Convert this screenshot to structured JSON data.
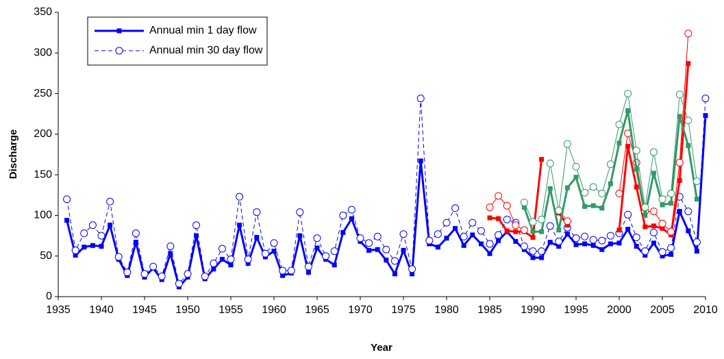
{
  "chart_data": {
    "type": "line",
    "xlabel": "Year",
    "ylabel": "Discharge",
    "xlim": [
      1935,
      2010
    ],
    "xticks": [
      1935,
      1940,
      1945,
      1950,
      1955,
      1960,
      1965,
      1970,
      1975,
      1980,
      1985,
      1990,
      1995,
      2000,
      2005,
      2010
    ],
    "ylim": [
      0,
      350
    ],
    "yticks": [
      0,
      50,
      100,
      150,
      200,
      250,
      300,
      350
    ],
    "grid": false,
    "legend": "upper left",
    "series": [
      {
        "name": "Annual min 1 day flow",
        "color": "#0000ff",
        "dash": false,
        "width": 3,
        "marker": "square",
        "x": [
          1936,
          1937,
          1938,
          1939,
          1940,
          1941,
          1942,
          1943,
          1944,
          1945,
          1946,
          1947,
          1948,
          1949,
          1950,
          1951,
          1952,
          1953,
          1954,
          1955,
          1956,
          1957,
          1958,
          1959,
          1960,
          1961,
          1962,
          1963,
          1964,
          1965,
          1966,
          1967,
          1968,
          1969,
          1970,
          1971,
          1972,
          1973,
          1974,
          1975,
          1976,
          1977,
          1978,
          1979,
          1980,
          1981,
          1982,
          1983,
          1984,
          1985,
          1986,
          1987,
          1988,
          1989,
          1990,
          1991,
          1992,
          1993,
          1994,
          1995,
          1996,
          1997,
          1998,
          1999,
          2000,
          2001,
          2002,
          2003,
          2004,
          2005,
          2006,
          2007,
          2008,
          2009,
          2010
        ],
        "values": [
          94,
          51,
          61,
          63,
          62,
          88,
          46,
          26,
          67,
          24,
          35,
          21,
          53,
          12,
          24,
          75,
          22,
          34,
          46,
          39,
          88,
          41,
          73,
          49,
          56,
          26,
          29,
          75,
          30,
          60,
          46,
          39,
          79,
          96,
          68,
          57,
          58,
          45,
          28,
          57,
          28,
          167,
          65,
          61,
          72,
          84,
          63,
          76,
          65,
          53,
          69,
          80,
          68,
          58,
          48,
          48,
          67,
          62,
          77,
          64,
          65,
          63,
          58,
          65,
          66,
          83,
          62,
          51,
          66,
          50,
          52,
          105,
          81,
          56,
          223
        ]
      },
      {
        "name": "Annual min 30 day flow",
        "color": "#0000ff",
        "dash": true,
        "width": 1,
        "marker": "circle-open",
        "x": [
          1936,
          1937,
          1938,
          1939,
          1940,
          1941,
          1942,
          1943,
          1944,
          1945,
          1946,
          1947,
          1948,
          1949,
          1950,
          1951,
          1952,
          1953,
          1954,
          1955,
          1956,
          1957,
          1958,
          1959,
          1960,
          1961,
          1962,
          1963,
          1964,
          1965,
          1966,
          1967,
          1968,
          1969,
          1970,
          1971,
          1972,
          1973,
          1974,
          1975,
          1976,
          1977,
          1978,
          1979,
          1980,
          1981,
          1982,
          1983,
          1984,
          1985,
          1986,
          1987,
          1988,
          1989,
          1990,
          1991,
          1992,
          1993,
          1994,
          1995,
          1996,
          1997,
          1998,
          1999,
          2000,
          2001,
          2002,
          2003,
          2004,
          2005,
          2006,
          2007,
          2008,
          2009,
          2010
        ],
        "values": [
          120,
          57,
          78,
          88,
          75,
          117,
          49,
          30,
          78,
          28,
          37,
          25,
          62,
          16,
          28,
          88,
          25,
          41,
          59,
          46,
          123,
          46,
          104,
          53,
          66,
          32,
          32,
          104,
          37,
          72,
          50,
          56,
          100,
          107,
          72,
          66,
          74,
          58,
          44,
          77,
          34,
          244,
          69,
          77,
          91,
          109,
          74,
          91,
          81,
          65,
          76,
          95,
          91,
          62,
          56,
          56,
          87,
          68,
          85,
          72,
          74,
          70,
          69,
          75,
          78,
          101,
          73,
          56,
          79,
          55,
          60,
          123,
          105,
          67,
          244
        ]
      },
      {
        "color": "#ff0000",
        "dash": false,
        "width": 3,
        "marker": "square",
        "x": [
          1985,
          1986,
          1987,
          1988,
          1989,
          1990,
          1991,
          1992,
          1993,
          1994,
          1995,
          1996,
          1997,
          1998,
          1999,
          2000,
          2001,
          2002,
          2003,
          2004,
          2005,
          2006,
          2007,
          2008
        ],
        "values": [
          97,
          96,
          81,
          80,
          80,
          73,
          169,
          null,
          103,
          88,
          null,
          null,
          null,
          null,
          null,
          82,
          185,
          135,
          86,
          87,
          84,
          76,
          143,
          287
        ]
      },
      {
        "color": "#ff0000",
        "dash": false,
        "width": 1,
        "marker": "circle-open",
        "x": [
          1985,
          1986,
          1987,
          1988,
          1989,
          1990,
          1991,
          1992,
          1993,
          1994,
          1995,
          1996,
          1997,
          1998,
          1999,
          2000,
          2001,
          2002,
          2003,
          2004,
          2005,
          2006,
          2007,
          2008
        ],
        "values": [
          110,
          124,
          112,
          88,
          82,
          null,
          null,
          null,
          106,
          93,
          null,
          null,
          null,
          null,
          null,
          127,
          201,
          165,
          105,
          105,
          90,
          80,
          165,
          324
        ]
      },
      {
        "color": "#339966",
        "dash": false,
        "width": 3,
        "marker": "square",
        "x": [
          1989,
          1990,
          1991,
          1992,
          1993,
          1994,
          1995,
          1996,
          1997,
          1998,
          1999,
          2000,
          2001,
          2002,
          2003,
          2004,
          2005,
          2006,
          2007,
          2008,
          2009
        ],
        "values": [
          110,
          80,
          80,
          133,
          82,
          134,
          147,
          111,
          112,
          109,
          139,
          189,
          229,
          157,
          100,
          152,
          113,
          115,
          222,
          186,
          120
        ]
      },
      {
        "color": "#339966",
        "dash": false,
        "width": 1,
        "marker": "circle-open",
        "x": [
          1989,
          1990,
          1991,
          1992,
          1993,
          1994,
          1995,
          1996,
          1997,
          1998,
          1999,
          2000,
          2001,
          2002,
          2003,
          2004,
          2005,
          2006,
          2007,
          2008,
          2009
        ],
        "values": [
          116,
          92,
          95,
          164,
          106,
          188,
          160,
          128,
          135,
          127,
          163,
          212,
          250,
          180,
          110,
          178,
          120,
          127,
          249,
          217,
          142
        ]
      }
    ]
  }
}
